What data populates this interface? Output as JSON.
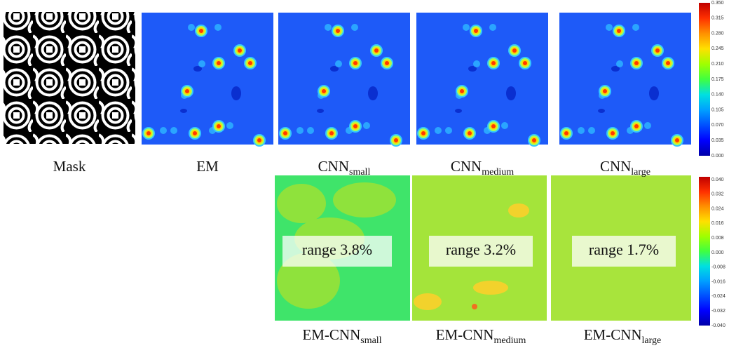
{
  "row1_captions": [
    {
      "text": "Mask"
    },
    {
      "text": "EM"
    },
    {
      "text": "CNN",
      "sub": "small"
    },
    {
      "text": "CNN",
      "sub": "medium"
    },
    {
      "text": "CNN",
      "sub": "large"
    }
  ],
  "row2_captions": [
    {
      "text": "EM-CNN",
      "sub": "small"
    },
    {
      "text": "EM-CNN",
      "sub": "medium"
    },
    {
      "text": "EM-CNN",
      "sub": "large"
    }
  ],
  "annotations": [
    "range 3.8%",
    "range 3.2%",
    "range 1.7%"
  ],
  "colorbar_top": [
    "0.350",
    "0.315",
    "0.280",
    "0.245",
    "0.210",
    "0.175",
    "0.140",
    "0.105",
    "0.070",
    "0.035",
    "0.000"
  ],
  "colorbar_bottom": [
    "0.040",
    "0.032",
    "0.024",
    "0.016",
    "0.008",
    "0.000",
    "-0.008",
    "-0.016",
    "-0.024",
    "-0.032",
    "-0.040"
  ]
}
